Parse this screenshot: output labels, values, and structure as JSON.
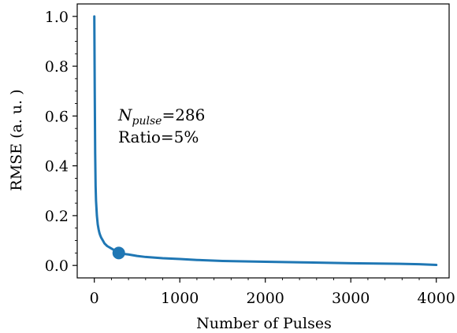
{
  "chart_data": {
    "type": "line",
    "xlabel": "Number of Pulses",
    "ylabel": "RMSE (a. u. )",
    "xlim": [
      -200,
      4150
    ],
    "ylim": [
      -0.05,
      1.05
    ],
    "xticks": [
      0,
      1000,
      2000,
      3000,
      4000
    ],
    "xtick_labels": [
      "0",
      "1000",
      "2000",
      "3000",
      "4000"
    ],
    "yticks": [
      0.0,
      0.2,
      0.4,
      0.6,
      0.8,
      1.0
    ],
    "ytick_labels": [
      "0.0",
      "0.2",
      "0.4",
      "0.6",
      "0.8",
      "1.0"
    ],
    "grid": false,
    "line_color": "#1f77b4",
    "series": [
      {
        "x": [
          0,
          5,
          10,
          15,
          20,
          30,
          40,
          50,
          60,
          70,
          80,
          100,
          120,
          150,
          200,
          250,
          286,
          350,
          400,
          500,
          600,
          800,
          1000,
          1200,
          1500,
          2000,
          2500,
          3000,
          3500,
          3800,
          4000
        ],
        "y": [
          1.0,
          0.7,
          0.45,
          0.32,
          0.26,
          0.2,
          0.165,
          0.145,
          0.13,
          0.12,
          0.112,
          0.1,
          0.088,
          0.078,
          0.068,
          0.058,
          0.05,
          0.046,
          0.044,
          0.038,
          0.034,
          0.029,
          0.026,
          0.022,
          0.018,
          0.015,
          0.012,
          0.009,
          0.007,
          0.005,
          0.002
        ]
      }
    ],
    "marker": {
      "x": 286,
      "y": 0.05
    },
    "annotation": {
      "n_symbol": "N",
      "n_subscript": "pulse",
      "n_value": "=286",
      "ratio": "Ratio=5%"
    }
  }
}
